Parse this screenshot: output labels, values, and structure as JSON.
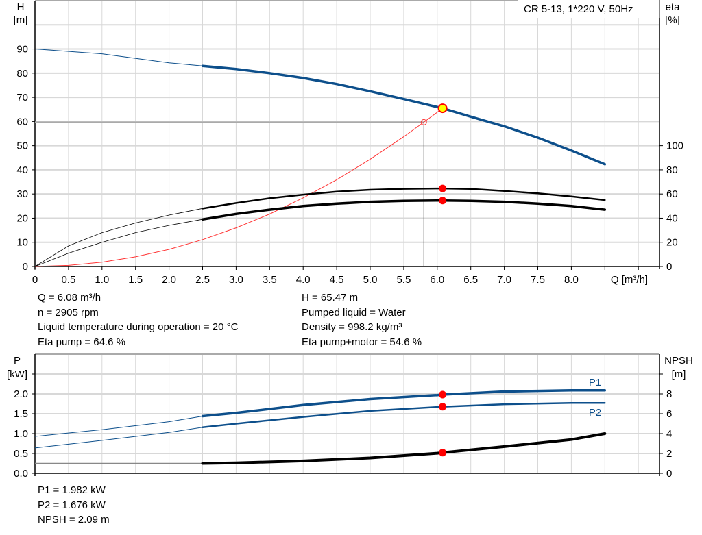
{
  "title_box": "CR 5-13, 1*220 V, 50Hz",
  "colors": {
    "head": "#0d4f8b",
    "eta": "#000000",
    "system": "#ff3333",
    "duty_point": "#ff0000",
    "duty_fill_head": "#ffff00",
    "grid": "#d8d8d8",
    "ref_line": "#999999"
  },
  "chart_data": [
    {
      "type": "line",
      "title": "",
      "xlabel": "Q [m³/h]",
      "x_ticks": [
        "0",
        "0.5",
        "1.0",
        "1.5",
        "2.0",
        "2.5",
        "3.0",
        "3.5",
        "4.0",
        "4.5",
        "5.0",
        "5.5",
        "6.0",
        "6.5",
        "7.0",
        "7.5",
        "8.0"
      ],
      "y_left_label": [
        "H",
        "[m]"
      ],
      "y_left_ticks": [
        "0",
        "10",
        "20",
        "30",
        "40",
        "50",
        "60",
        "70",
        "80",
        "90"
      ],
      "y_right_label": [
        "eta",
        "[%]"
      ],
      "y_right_ticks": [
        "0",
        "20",
        "40",
        "60",
        "80",
        "100"
      ],
      "xlim": [
        0,
        9.3
      ],
      "ylim_left": [
        0,
        110
      ],
      "ylim_right": [
        0,
        220
      ],
      "grid": true,
      "series": [
        {
          "id": "head",
          "axis": "left",
          "x": [
            0,
            1,
            2,
            2.5,
            3,
            3.5,
            4,
            4.5,
            5,
            5.5,
            6,
            6.08,
            6.5,
            7,
            7.5,
            8,
            8.5
          ],
          "y": [
            90,
            88,
            84.3,
            83,
            81.7,
            80,
            78,
            75.5,
            72.5,
            69.3,
            66,
            65.47,
            62,
            58,
            53.3,
            48,
            42.3
          ]
        },
        {
          "id": "eta-pump",
          "axis": "right",
          "x": [
            0,
            0.5,
            1,
            1.5,
            2,
            2.5,
            3,
            3.5,
            4,
            4.5,
            5,
            5.5,
            6,
            6.08,
            6.5,
            7,
            7.5,
            8,
            8.5
          ],
          "y": [
            0,
            17,
            28,
            36,
            42.5,
            48,
            52.5,
            56.5,
            59.5,
            62,
            63.5,
            64.3,
            64.6,
            64.6,
            64.2,
            62.5,
            60.5,
            58,
            55
          ]
        },
        {
          "id": "eta-pump-motor",
          "axis": "right",
          "x": [
            0,
            0.5,
            1,
            1.5,
            2,
            2.5,
            3,
            3.5,
            4,
            4.5,
            5,
            5.5,
            6,
            6.08,
            6.5,
            7,
            7.5,
            8,
            8.5
          ],
          "y": [
            0,
            11,
            20,
            28,
            34,
            39,
            43.5,
            47,
            50,
            52,
            53.5,
            54.3,
            54.6,
            54.6,
            54.3,
            53.5,
            52,
            50,
            47
          ]
        },
        {
          "id": "system-curve",
          "axis": "left",
          "x": [
            0,
            0.5,
            1,
            1.5,
            2,
            2.5,
            3,
            3.5,
            4,
            4.5,
            5,
            5.5,
            5.8,
            6.08
          ],
          "y": [
            0,
            0.44,
            1.78,
            4,
            7.1,
            11.1,
            16,
            21.7,
            28.4,
            35.9,
            44.4,
            53.7,
            59.7,
            65.47
          ]
        }
      ],
      "duty_point": {
        "Q": 6.08,
        "H": 65.47,
        "eta_pump": 64.6,
        "eta_pump_motor": 54.6
      },
      "reference_point": {
        "Q": 5.8,
        "H": 59.7
      }
    },
    {
      "type": "line",
      "title": "",
      "y_left_label": [
        "P",
        "[kW]"
      ],
      "y_left_ticks": [
        "0.0",
        "0.5",
        "1.0",
        "1.5",
        "2.0"
      ],
      "y_right_label": [
        "NPSH",
        "[m]"
      ],
      "y_right_ticks": [
        "0",
        "2",
        "4",
        "6",
        "8"
      ],
      "xlim": [
        0,
        9.3
      ],
      "ylim_left": [
        0,
        3
      ],
      "ylim_right": [
        0,
        12
      ],
      "grid": true,
      "series": [
        {
          "id": "P1",
          "name": "P1",
          "axis": "left",
          "x": [
            0,
            1,
            2,
            2.5,
            3,
            4,
            5,
            6,
            6.08,
            7,
            8,
            8.5
          ],
          "y": [
            0.93,
            1.1,
            1.3,
            1.44,
            1.52,
            1.72,
            1.87,
            1.97,
            1.982,
            2.06,
            2.09,
            2.09
          ]
        },
        {
          "id": "P2",
          "name": "P2",
          "axis": "left",
          "x": [
            0,
            1,
            2,
            2.5,
            3,
            4,
            5,
            6,
            6.08,
            7,
            8,
            8.5
          ],
          "y": [
            0.64,
            0.83,
            1.03,
            1.16,
            1.25,
            1.42,
            1.57,
            1.67,
            1.676,
            1.74,
            1.77,
            1.77
          ]
        },
        {
          "id": "NPSH",
          "axis": "right",
          "x": [
            0,
            1,
            2,
            2.5,
            3,
            4,
            5,
            6,
            6.08,
            7,
            8,
            8.5
          ],
          "y": [
            1.0,
            1.0,
            1.0,
            1.0,
            1.05,
            1.25,
            1.55,
            2.03,
            2.09,
            2.7,
            3.4,
            4.0
          ]
        }
      ],
      "duty_point": {
        "Q": 6.08,
        "P1": 1.982,
        "P2": 1.676,
        "NPSH": 2.09
      }
    }
  ],
  "info_top_left": [
    "Q = 6.08 m³/h",
    "n = 2905 rpm",
    "Liquid temperature during operation = 20 °C",
    "Eta pump = 64.6 %"
  ],
  "info_top_right": [
    "H = 65.47 m",
    "Pumped liquid = Water",
    "Density = 998.2 kg/m³",
    "Eta pump+motor = 54.6 %"
  ],
  "info_bottom": [
    "P1 = 1.982 kW",
    "P2 = 1.676 kW",
    "NPSH = 2.09 m"
  ]
}
